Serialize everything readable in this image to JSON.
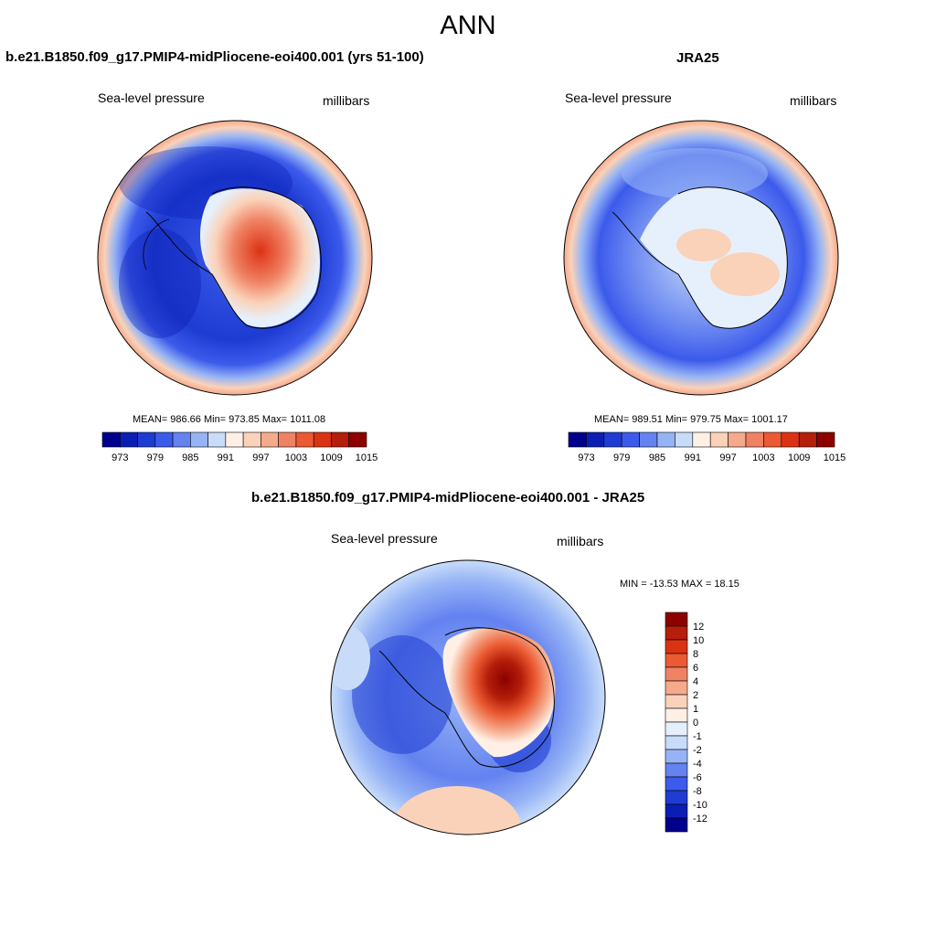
{
  "title": "ANN",
  "panels": {
    "model": {
      "title": "b.e21.B1850.f09_g17.PMIP4-midPliocene-eoi400.001 (yrs 51-100)",
      "variable": "Sea-level pressure",
      "units": "millibars",
      "stats": "MEAN= 986.66  Min= 973.85  Max= 1011.08"
    },
    "obs": {
      "title": "JRA25",
      "variable": "Sea-level pressure",
      "units": "millibars",
      "stats": "MEAN= 989.51  Min= 979.75  Max= 1001.17"
    },
    "diff": {
      "title": "b.e21.B1850.f09_g17.PMIP4-midPliocene-eoi400.001 - JRA25",
      "variable": "Sea-level pressure",
      "units": "millibars",
      "stats": "MIN = -13.53 MAX =  18.15"
    }
  },
  "colorbars": {
    "abs_ticks": [
      "973",
      "979",
      "985",
      "991",
      "997",
      "1003",
      "1009",
      "1015"
    ],
    "abs_colors": [
      "#00008c",
      "#0a1eb4",
      "#1e3cd2",
      "#3c5aeb",
      "#6482f0",
      "#96b4f5",
      "#c8dcfa",
      "#fff0e6",
      "#fad2b9",
      "#f5aa8c",
      "#f08264",
      "#eb5a32",
      "#dc3214",
      "#b41e0a",
      "#8c0000"
    ],
    "diff_ticks": [
      "12",
      "10",
      "8",
      "6",
      "4",
      "2",
      "1",
      "0",
      "-1",
      "-2",
      "-4",
      "-6",
      "-8",
      "-10",
      "-12"
    ],
    "diff_colors": [
      "#8c0000",
      "#b41e0a",
      "#dc3214",
      "#eb5a32",
      "#f08264",
      "#f5aa8c",
      "#fad2b9",
      "#fff0e6",
      "#e6f0fc",
      "#c8dcfa",
      "#96b4f5",
      "#6482f0",
      "#3c5aeb",
      "#1e3cd2",
      "#0a1eb4",
      "#00008c"
    ]
  }
}
